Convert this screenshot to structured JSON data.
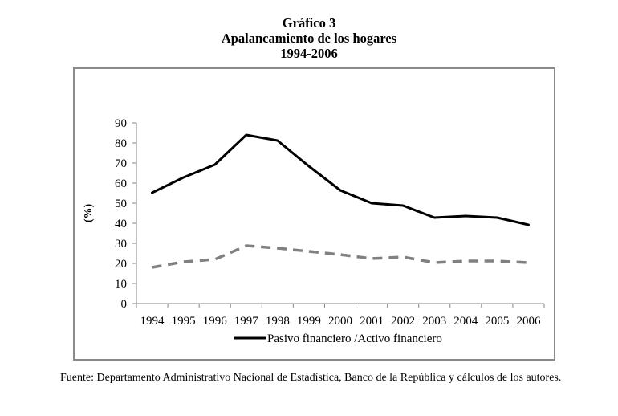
{
  "figure": {
    "label": "Gráfico 3",
    "title": "Apalancamiento de los hogares",
    "period": "1994-2006"
  },
  "footer": {
    "source": "Fuente: Departamento Administrativo Nacional de Estadística, Banco de la República y cálculos de los autores."
  },
  "chart_data": {
    "type": "line",
    "title": "Apalancamiento de los hogares",
    "subtitle": "1994-2006",
    "xlabel": "",
    "ylabel": "(%)",
    "categories": [
      "1994",
      "1995",
      "1996",
      "1997",
      "1998",
      "1999",
      "2000",
      "2001",
      "2002",
      "2003",
      "2004",
      "2005",
      "2006"
    ],
    "ylim": [
      0,
      90
    ],
    "yticks": [
      0,
      10,
      20,
      30,
      40,
      50,
      60,
      70,
      80,
      90
    ],
    "grid": false,
    "legend_position": "bottom",
    "series": [
      {
        "name": "Pasivo financiero /Activo financiero",
        "style": "solid",
        "color": "#000000",
        "show_in_legend": true,
        "values": [
          55.2,
          62.8,
          69.2,
          84.0,
          81.2,
          68.4,
          56.4,
          50.0,
          48.8,
          42.8,
          43.6,
          42.8,
          39.2
        ]
      },
      {
        "name": "",
        "style": "dashed",
        "color": "#808080",
        "show_in_legend": false,
        "values": [
          18.0,
          20.8,
          22.0,
          28.8,
          27.6,
          26.0,
          24.4,
          22.4,
          23.2,
          20.4,
          21.2,
          21.2,
          20.4
        ]
      }
    ]
  }
}
